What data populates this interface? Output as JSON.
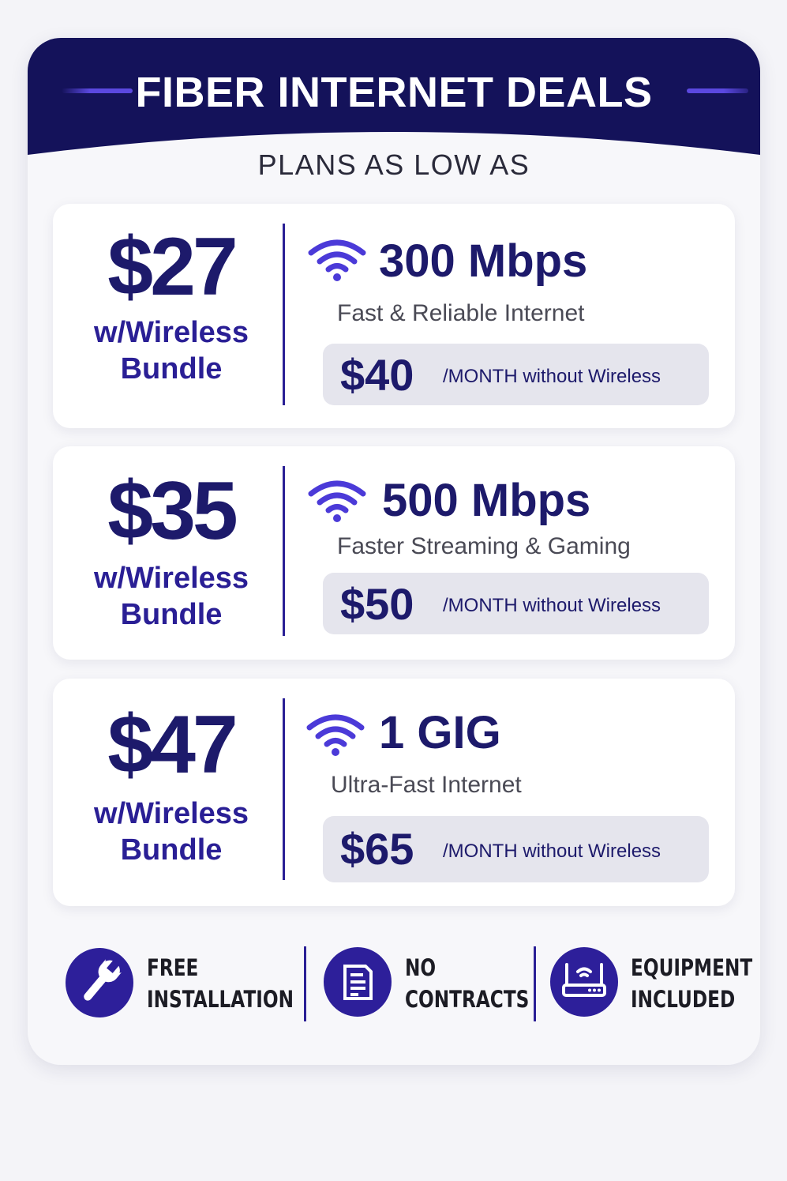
{
  "header": {
    "title": "FIBER INTERNET DEALS",
    "subtitle": "PLANS AS LOW AS"
  },
  "colors": {
    "navy": "#14125a",
    "accent": "#5b48e0",
    "price": "#1d1a6b",
    "icon_circle": "#2d1f9a",
    "wifi": "#4b3ad8"
  },
  "plans": [
    {
      "bundle_price": "$27",
      "bundle_label_1": "w/Wireless",
      "bundle_label_2": "Bundle",
      "icon": "wifi-icon",
      "speed": "300 Mbps",
      "description": "Fast & Reliable Internet",
      "standalone_price": "$40",
      "standalone_label": "/MONTH without Wireless"
    },
    {
      "bundle_price": "$35",
      "bundle_label_1": "w/Wireless",
      "bundle_label_2": "Bundle",
      "icon": "wifi-icon",
      "speed": "500 Mbps",
      "description": "Faster Streaming & Gaming",
      "standalone_price": "$50",
      "standalone_label": "/MONTH without Wireless"
    },
    {
      "bundle_price": "$47",
      "bundle_label_1": "w/Wireless",
      "bundle_label_2": "Bundle",
      "icon": "wifi-icon",
      "speed": "1 GIG",
      "description": "Ultra-Fast Internet",
      "standalone_price": "$65",
      "standalone_label": "/MONTH without Wireless"
    }
  ],
  "features": [
    {
      "icon": "wrench-icon",
      "line1": "FREE",
      "line2": "INSTALLATION"
    },
    {
      "icon": "document-icon",
      "line1": "NO",
      "line2": "CONTRACTS"
    },
    {
      "icon": "router-icon",
      "line1": "EQUIPMENT",
      "line2": "INCLUDED"
    }
  ]
}
